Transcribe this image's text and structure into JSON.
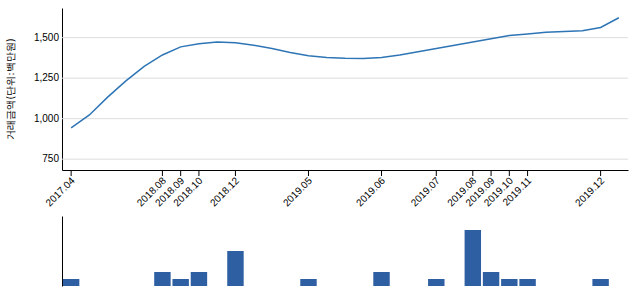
{
  "chart_data": [
    {
      "type": "line",
      "categories": [
        "2017.04",
        null,
        null,
        null,
        null,
        "2018.08",
        "2018.09",
        "2018.10",
        null,
        "2018.12",
        null,
        null,
        null,
        "2019.05",
        null,
        null,
        null,
        "2019.06",
        null,
        null,
        "2019.07",
        null,
        "2019.08",
        "2019.09",
        "2019.10",
        "2019.11",
        null,
        null,
        null,
        "2019.12",
        null
      ],
      "values": [
        940,
        1020,
        1130,
        1230,
        1320,
        1390,
        1440,
        1460,
        1470,
        1465,
        1450,
        1430,
        1405,
        1385,
        1375,
        1370,
        1368,
        1375,
        1390,
        1410,
        1430,
        1450,
        1470,
        1490,
        1510,
        1520,
        1530,
        1535,
        1540,
        1560,
        1620
      ],
      "color": "#2e75b6",
      "ylabel": "거래금액(단위:백만원)",
      "ylim": [
        680,
        1680
      ],
      "yticks": [
        750,
        {
          "value": 1000,
          "label": "1,000"
        },
        {
          "value": 1250,
          "label": "1,250"
        },
        {
          "value": 1500,
          "label": "1,500"
        }
      ],
      "grid": true
    },
    {
      "type": "bar",
      "categories": [
        "2017.04",
        null,
        null,
        null,
        null,
        "2018.08",
        "2018.09",
        "2018.10",
        null,
        "2018.12",
        null,
        null,
        null,
        "2019.05",
        null,
        null,
        null,
        "2019.06",
        null,
        null,
        "2019.07",
        null,
        "2019.08",
        "2019.09",
        "2019.10",
        "2019.11",
        null,
        null,
        null,
        "2019.12",
        null
      ],
      "values": [
        1,
        null,
        null,
        null,
        null,
        2,
        1,
        2,
        null,
        5,
        null,
        null,
        null,
        1,
        null,
        null,
        null,
        2,
        null,
        null,
        1,
        null,
        8,
        2,
        1,
        1,
        null,
        null,
        null,
        1,
        null
      ],
      "color": "#2e5fa3",
      "ylim": [
        0,
        10
      ],
      "tick_labels": false
    }
  ]
}
